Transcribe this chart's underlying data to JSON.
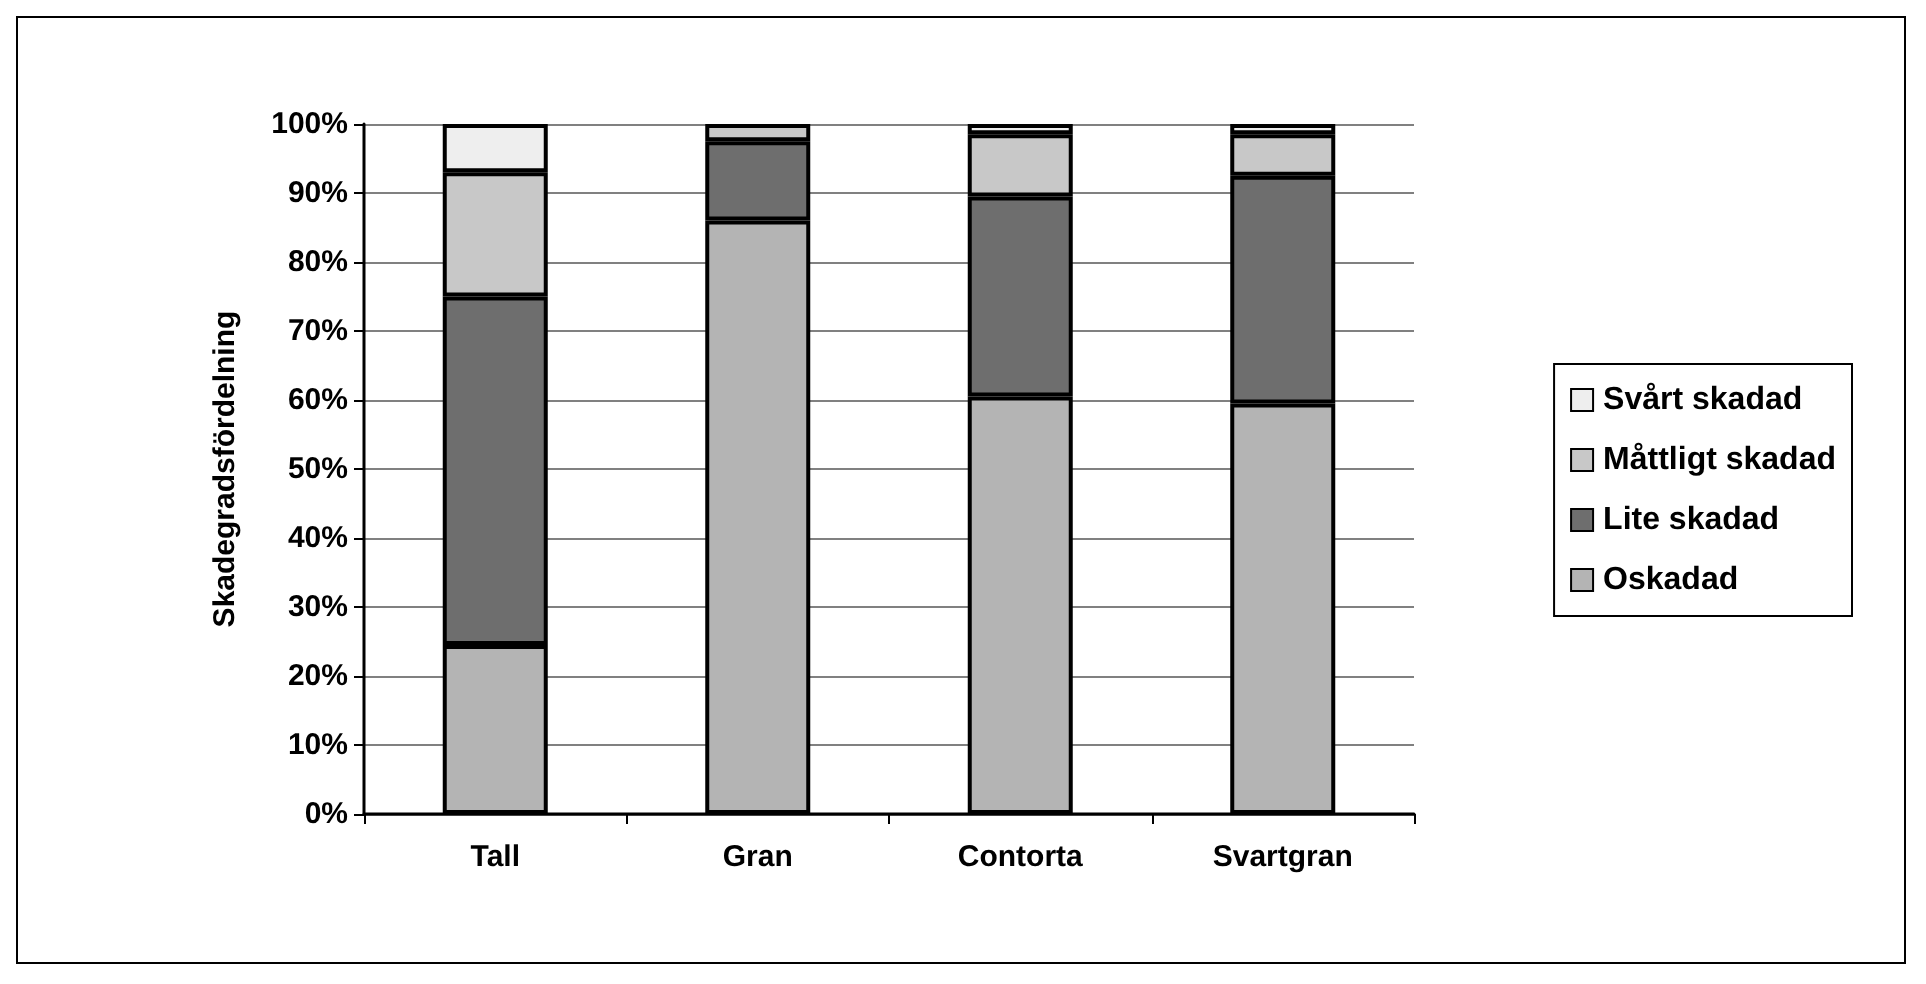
{
  "chart_data": {
    "type": "bar",
    "stacked": true,
    "ylabel": "Skadegradsfördelning",
    "categories": [
      "Tall",
      "Gran",
      "Contorta",
      "Svartgran"
    ],
    "series": [
      {
        "name": "Oskadad",
        "color": "#b4b4b4",
        "values": [
          24.5,
          86,
          60.5,
          59.5
        ]
      },
      {
        "name": "Lite skadad",
        "color": "#6e6e6e",
        "values": [
          50.5,
          11.5,
          29,
          33
        ]
      },
      {
        "name": "Måttligt skadad",
        "color": "#c8c8c8",
        "values": [
          18,
          2.5,
          9,
          6
        ]
      },
      {
        "name": "Svårt skadad",
        "color": "#eeeeee",
        "values": [
          7,
          0,
          1.5,
          1.5
        ]
      }
    ],
    "ylim": [
      0,
      100
    ],
    "yticks": [
      {
        "value": 0,
        "label": "0%"
      },
      {
        "value": 10,
        "label": "10%"
      },
      {
        "value": 20,
        "label": "20%"
      },
      {
        "value": 30,
        "label": "30%"
      },
      {
        "value": 40,
        "label": "40%"
      },
      {
        "value": 50,
        "label": "50%"
      },
      {
        "value": 60,
        "label": "60%"
      },
      {
        "value": 70,
        "label": "70%"
      },
      {
        "value": 80,
        "label": "80%"
      },
      {
        "value": 90,
        "label": "90%"
      },
      {
        "value": 100,
        "label": "100%"
      }
    ],
    "grid": "y",
    "legend": "right"
  }
}
